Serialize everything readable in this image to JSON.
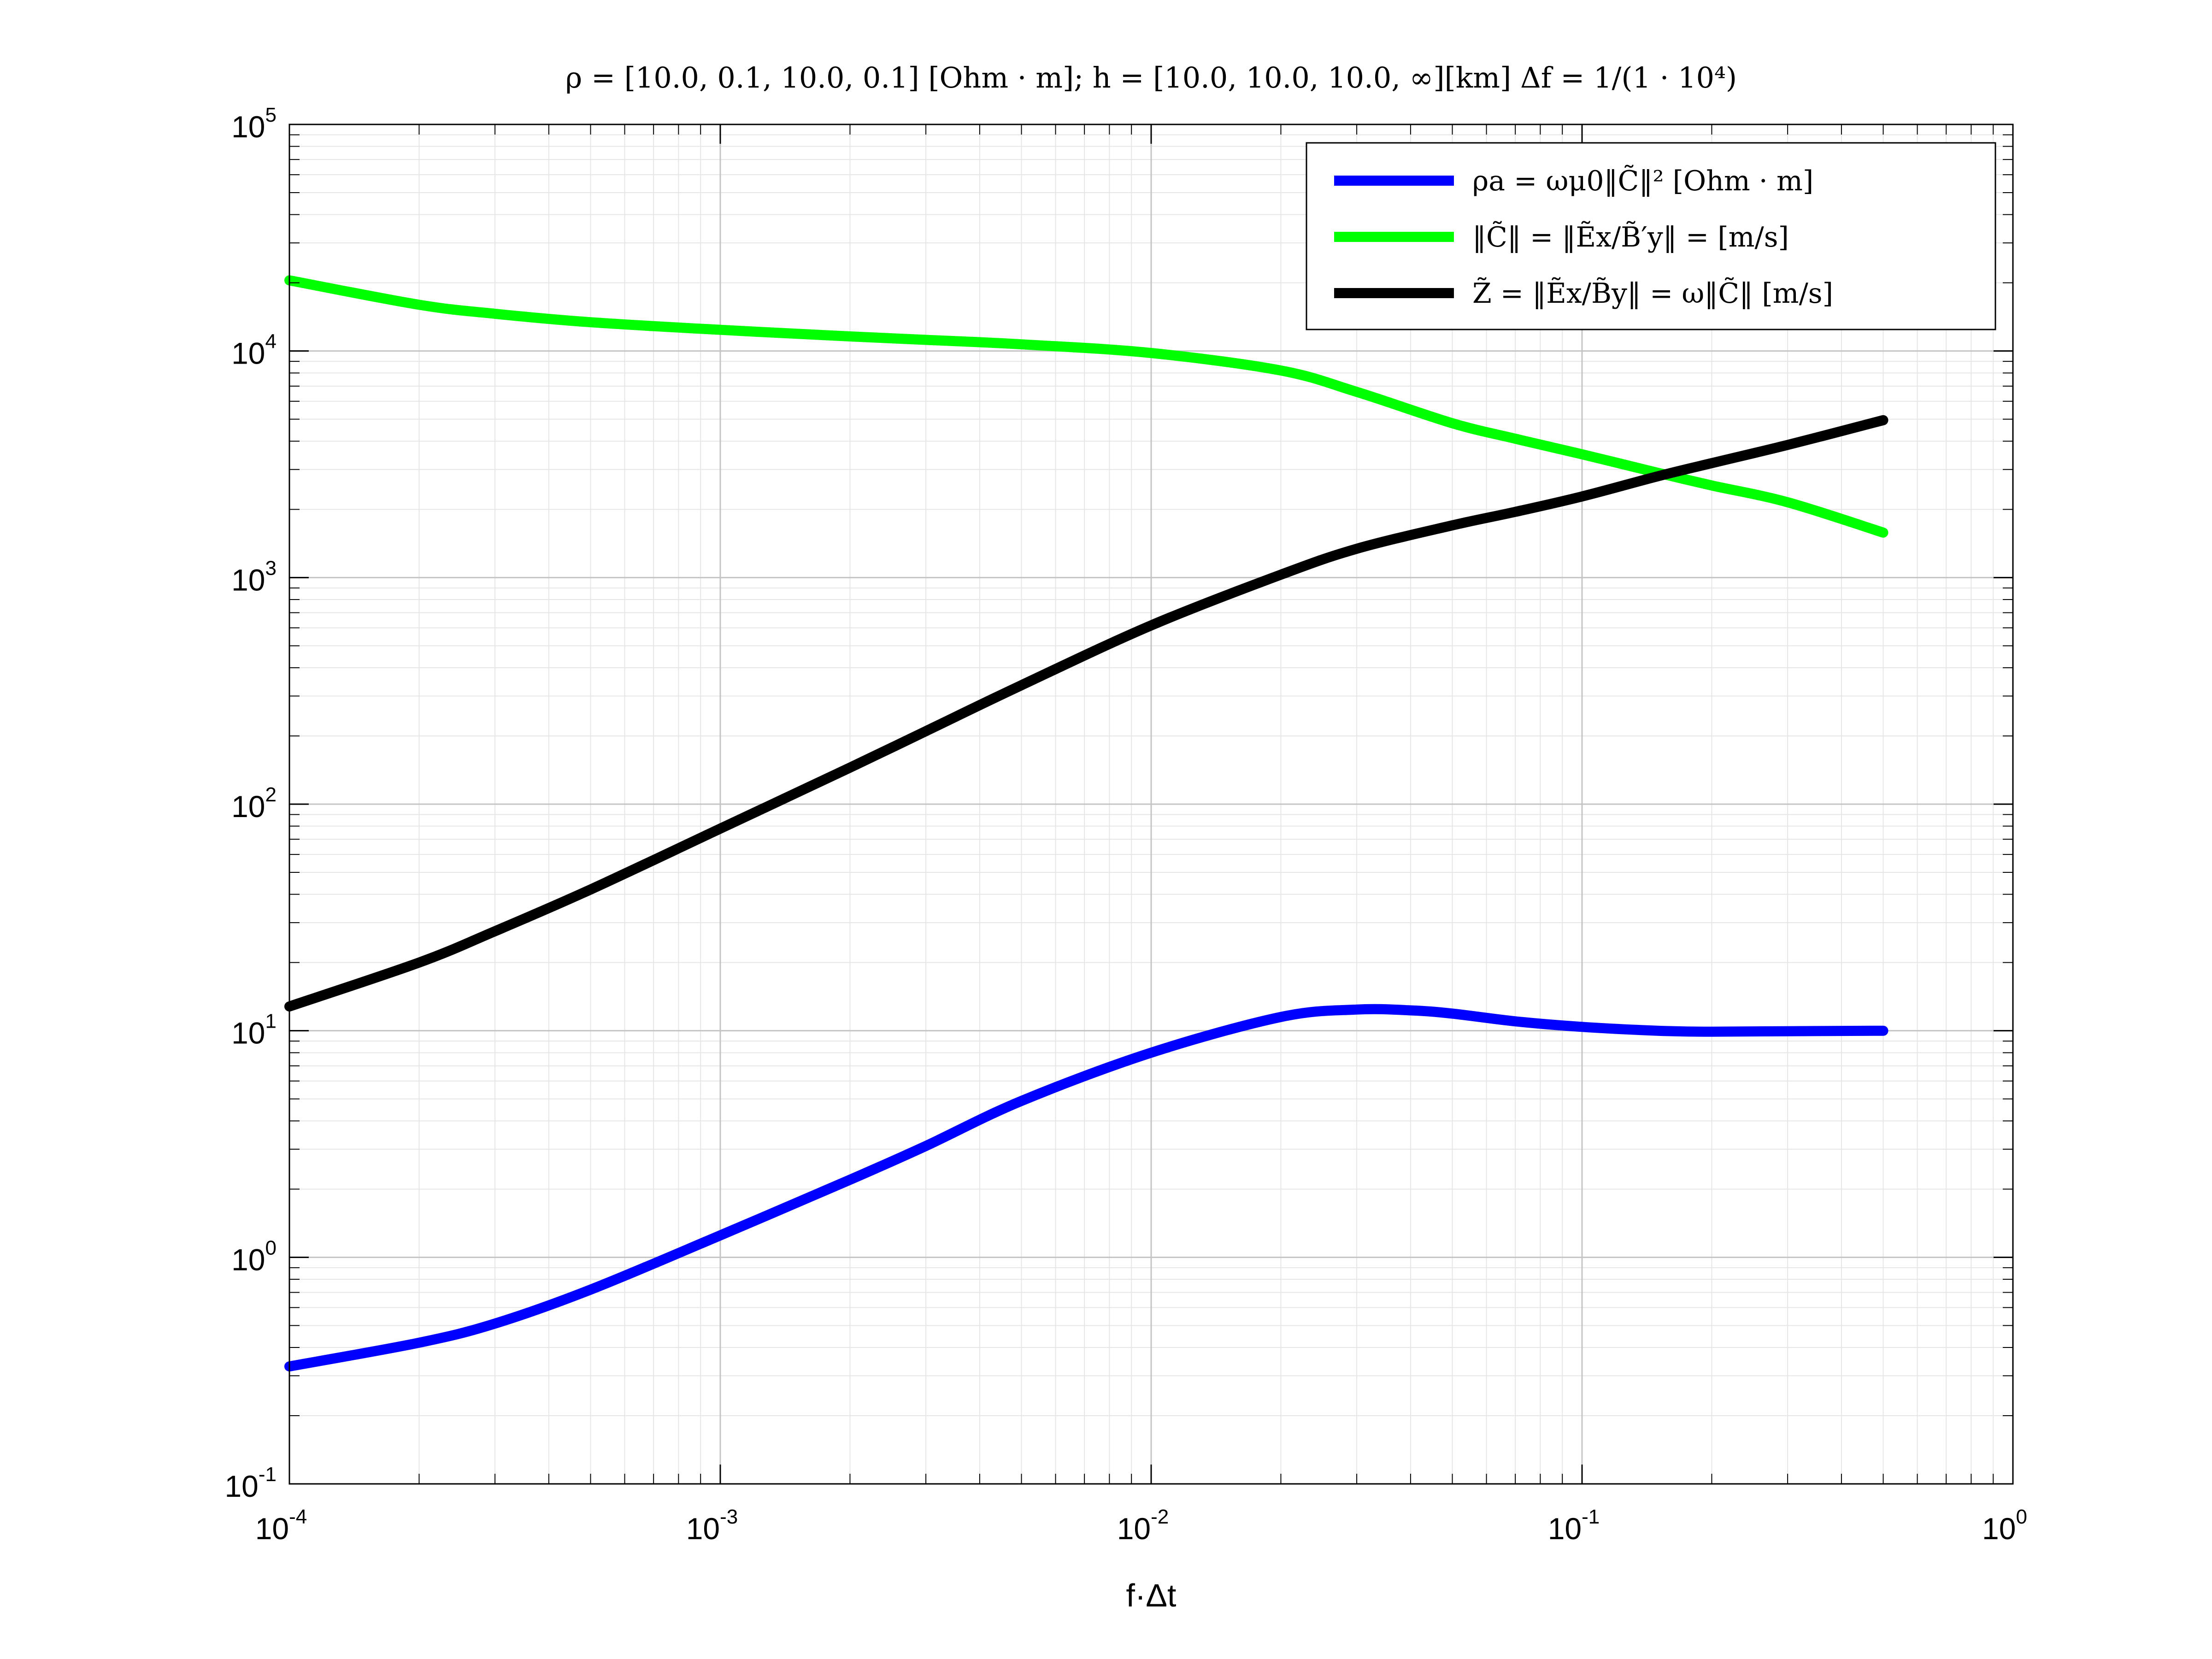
{
  "chart_data": {
    "type": "line",
    "title": "ρ = [10.0, 0.1, 10.0, 0.1] [Ohm · m];    h = [10.0, 10.0, 10.0, ∞][km]    Δf = 1/(1 · 10⁴)",
    "xlabel": "f·Δt",
    "ylabel": "",
    "xscale": "log",
    "yscale": "log",
    "xlim": [
      0.0001,
      1
    ],
    "ylim": [
      0.1,
      100000
    ],
    "grid": true,
    "legend_position": "top-right",
    "x_tick_labels": [
      {
        "value": 0.0001,
        "base": "10",
        "exp": "-4"
      },
      {
        "value": 0.001,
        "base": "10",
        "exp": "-3"
      },
      {
        "value": 0.01,
        "base": "10",
        "exp": "-2"
      },
      {
        "value": 0.1,
        "base": "10",
        "exp": "-1"
      },
      {
        "value": 1,
        "base": "10",
        "exp": "0"
      }
    ],
    "y_tick_labels": [
      {
        "value": 0.1,
        "base": "10",
        "exp": "-1"
      },
      {
        "value": 1,
        "base": "10",
        "exp": "0"
      },
      {
        "value": 10,
        "base": "10",
        "exp": "1"
      },
      {
        "value": 100,
        "base": "10",
        "exp": "2"
      },
      {
        "value": 1000,
        "base": "10",
        "exp": "3"
      },
      {
        "value": 10000,
        "base": "10",
        "exp": "4"
      },
      {
        "value": 100000,
        "base": "10",
        "exp": "5"
      }
    ],
    "series": [
      {
        "name": "ρa = ωμ0‖C̃‖²   [Ohm · m]",
        "color": "#0000ff",
        "x": [
          0.0001,
          0.0002,
          0.0003,
          0.0005,
          0.001,
          0.002,
          0.003,
          0.005,
          0.01,
          0.02,
          0.03,
          0.04,
          0.05,
          0.07,
          0.1,
          0.15,
          0.2,
          0.3,
          0.5
        ],
        "y": [
          0.33,
          0.42,
          0.51,
          0.72,
          1.25,
          2.2,
          3.1,
          4.9,
          8.0,
          11.5,
          12.4,
          12.3,
          11.9,
          11.0,
          10.4,
          10.0,
          9.9,
          9.95,
          10.0
        ]
      },
      {
        "name": "‖C̃‖ = ‖Ẽx/B̃′y‖ =    [m/s]",
        "color": "#00ff00",
        "x": [
          0.0001,
          0.0002,
          0.0003,
          0.0005,
          0.001,
          0.002,
          0.003,
          0.005,
          0.01,
          0.02,
          0.03,
          0.05,
          0.07,
          0.1,
          0.15,
          0.2,
          0.3,
          0.5
        ],
        "y": [
          20500,
          16000,
          14600,
          13400,
          12400,
          11600,
          11200,
          10700,
          9800,
          8200,
          6600,
          4800,
          4100,
          3500,
          2900,
          2550,
          2150,
          1580
        ]
      },
      {
        "name": "Z̃ = ‖Ẽx/B̃y‖ = ω‖C̃‖   [m/s]",
        "color": "#000000",
        "x": [
          0.0001,
          0.0002,
          0.0003,
          0.0005,
          0.001,
          0.002,
          0.003,
          0.005,
          0.01,
          0.02,
          0.03,
          0.05,
          0.07,
          0.1,
          0.15,
          0.2,
          0.3,
          0.5
        ],
        "y": [
          12.8,
          20,
          27.5,
          42,
          78,
          145,
          210,
          335,
          615,
          1030,
          1340,
          1700,
          1950,
          2280,
          2800,
          3200,
          3850,
          4950
        ]
      }
    ]
  }
}
